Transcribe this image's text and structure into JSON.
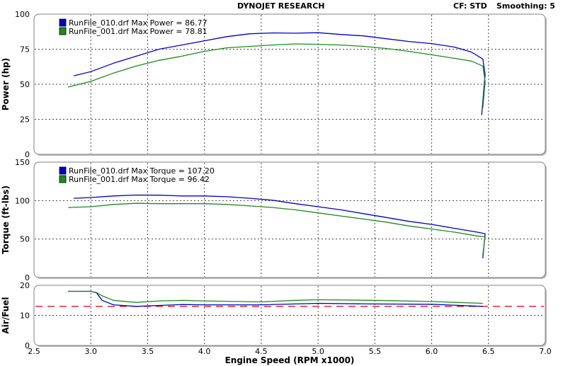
{
  "header": {
    "title": "DYNOJET RESEARCH",
    "cf": "CF: STD",
    "smoothing": "Smoothing: 5"
  },
  "colors": {
    "run_010": "#0000c8",
    "run_001": "#1e8a1e",
    "afr_target": "#e00000",
    "panel_bg": "#ffffff",
    "frame": "#808080"
  },
  "chart_data": [
    {
      "type": "line",
      "id": "power",
      "ylabel": "Power (hp)",
      "ylim": [
        0,
        100
      ],
      "yticks": [
        0,
        25,
        50,
        75,
        100
      ],
      "xlim": [
        2.5,
        7.0
      ],
      "grid": true,
      "legend_position": "top-left",
      "series": [
        {
          "name": "RunFile_010.drf Max Power = 86.77",
          "color": "#0000c8",
          "x": [
            2.85,
            3.0,
            3.2,
            3.4,
            3.6,
            3.8,
            4.0,
            4.2,
            4.4,
            4.6,
            4.8,
            5.0,
            5.2,
            5.4,
            5.6,
            5.8,
            6.0,
            6.2,
            6.35,
            6.45,
            6.47,
            6.44
          ],
          "y": [
            56,
            59,
            65,
            70,
            75,
            78,
            81,
            84,
            86,
            86.6,
            86.4,
            86.77,
            85.5,
            84.5,
            82.5,
            80.5,
            79,
            76.5,
            73,
            68,
            57,
            28
          ]
        },
        {
          "name": "RunFile_001.drf Max Power = 78.81",
          "color": "#1e8a1e",
          "x": [
            2.8,
            3.0,
            3.2,
            3.4,
            3.6,
            3.8,
            4.0,
            4.2,
            4.4,
            4.6,
            4.8,
            5.0,
            5.2,
            5.4,
            5.6,
            5.8,
            6.0,
            6.2,
            6.35,
            6.45,
            6.47,
            6.45
          ],
          "y": [
            48,
            52,
            58,
            63,
            67,
            70,
            73.5,
            76,
            77,
            78,
            78.81,
            78.5,
            78,
            77,
            75.5,
            73.5,
            71,
            68.5,
            66.5,
            63,
            52,
            33
          ]
        }
      ]
    },
    {
      "type": "line",
      "id": "torque",
      "ylabel": "Torque (ft-lbs)",
      "ylim": [
        0,
        150
      ],
      "yticks": [
        0,
        50,
        100,
        150
      ],
      "xlim": [
        2.5,
        7.0
      ],
      "grid": true,
      "legend_position": "top-left",
      "series": [
        {
          "name": "RunFile_010.drf Max Torque = 107.20",
          "color": "#0000c8",
          "x": [
            2.85,
            3.0,
            3.2,
            3.4,
            3.6,
            3.8,
            4.0,
            4.2,
            4.4,
            4.6,
            4.8,
            5.0,
            5.2,
            5.4,
            5.6,
            5.8,
            6.0,
            6.2,
            6.4,
            6.47,
            6.45
          ],
          "y": [
            103,
            104,
            106,
            107.2,
            107,
            106,
            106,
            105,
            103,
            100.5,
            96,
            92,
            88,
            83,
            78,
            73,
            69,
            64,
            59,
            57,
            25
          ]
        },
        {
          "name": "RunFile_001.drf Max Torque = 96.42",
          "color": "#1e8a1e",
          "x": [
            2.8,
            3.0,
            3.2,
            3.4,
            3.6,
            3.8,
            4.0,
            4.2,
            4.4,
            4.6,
            4.8,
            5.0,
            5.2,
            5.4,
            5.6,
            5.8,
            6.0,
            6.2,
            6.4,
            6.47,
            6.45
          ],
          "y": [
            91,
            92,
            95,
            96.42,
            96,
            96,
            96,
            95,
            93,
            91,
            88,
            84,
            80,
            76,
            72,
            67,
            63,
            59,
            54,
            53,
            30
          ]
        }
      ]
    },
    {
      "type": "line",
      "id": "afr",
      "ylabel": "Air/Fuel",
      "ylim": [
        0,
        20
      ],
      "yticks": [
        0,
        10,
        20
      ],
      "xlabel": "Engine Speed (RPM x1000)",
      "xlim": [
        2.5,
        7.0
      ],
      "xticks": [
        "2.5",
        "3.0",
        "3.5",
        "4.0",
        "4.5",
        "5.0",
        "5.5",
        "6.0",
        "6.5",
        "7.0"
      ],
      "grid": true,
      "series": [
        {
          "color": "#0000c8",
          "x": [
            2.8,
            3.0,
            3.05,
            3.1,
            3.2,
            3.4,
            3.6,
            3.8,
            4.0,
            4.5,
            5.0,
            5.5,
            6.0,
            6.45
          ],
          "y": [
            18,
            18,
            17.5,
            15,
            13.5,
            13,
            13.3,
            13.6,
            13.5,
            13.5,
            14,
            13.8,
            13.7,
            13
          ]
        },
        {
          "color": "#1e8a1e",
          "x": [
            2.8,
            3.0,
            3.05,
            3.1,
            3.2,
            3.4,
            3.6,
            3.8,
            4.0,
            4.5,
            4.8,
            5.0,
            5.5,
            6.0,
            6.45
          ],
          "y": [
            18,
            18,
            17.6,
            16.5,
            15,
            14.3,
            14.8,
            15,
            14.8,
            14.5,
            15,
            15.2,
            15,
            14.6,
            14
          ]
        }
      ],
      "reference_line": {
        "y": 13,
        "color": "#e00000",
        "style": "dashed"
      }
    }
  ]
}
